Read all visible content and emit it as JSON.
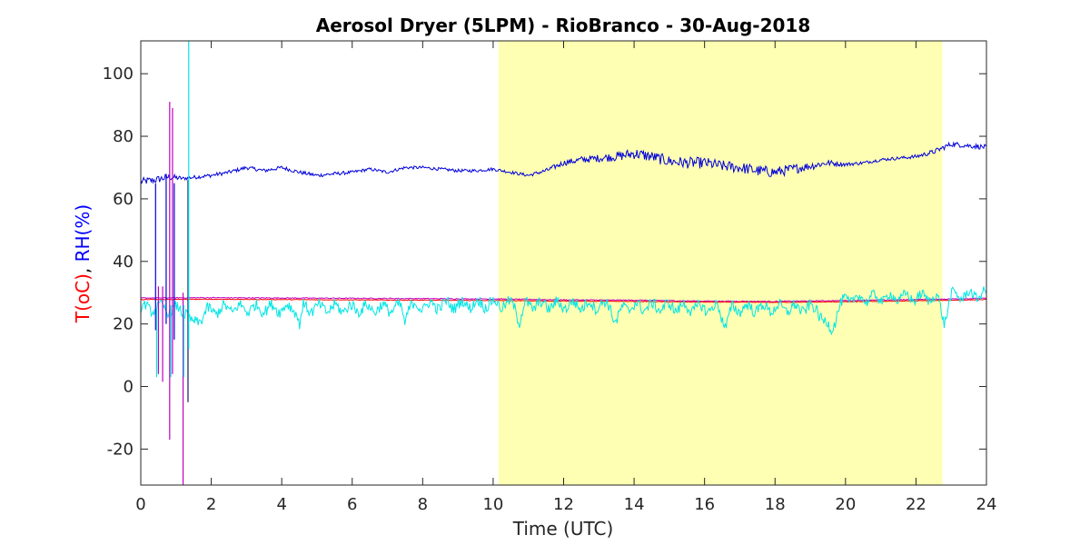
{
  "chart_data": {
    "type": "line",
    "title": "Aerosol Dryer (5LPM) - RioBranco - 30-Aug-2018",
    "xlabel": "Time (UTC)",
    "ylabel_parts": [
      {
        "text": "T(oC)",
        "color": "#ff0000"
      },
      {
        "text": ", ",
        "color": "#000000"
      },
      {
        "text": "RH(%)",
        "color": "#0000ff"
      }
    ],
    "xlim": [
      0,
      24
    ],
    "ylim": [
      -31.5,
      110.5
    ],
    "xticks": [
      0,
      2,
      4,
      6,
      8,
      10,
      12,
      14,
      16,
      18,
      20,
      22,
      24
    ],
    "yticks": [
      -20,
      0,
      20,
      40,
      60,
      80,
      100
    ],
    "grid": false,
    "highlight": {
      "x": [
        10.15,
        22.75
      ],
      "color": "#ffffb3"
    },
    "colors": {
      "rh": "#0000d9",
      "t_red": "#ff0000",
      "t_magenta": "#c000c0",
      "rh_cyan": "#00e5e5"
    },
    "series": [
      {
        "color": "#0000d9",
        "x": [
          0,
          0.4,
          0.8,
          1.2,
          1.6,
          2.0,
          2.5,
          3.0,
          3.5,
          4.0,
          4.5,
          5.0,
          5.5,
          6.0,
          6.5,
          7.0,
          7.5,
          8.0,
          8.5,
          9.0,
          9.5,
          10.0,
          10.5,
          11.0,
          11.5,
          12.0,
          12.5,
          13.0,
          13.5,
          14.0,
          14.5,
          15.0,
          15.5,
          16.0,
          16.5,
          17.0,
          17.5,
          18.0,
          18.5,
          19.0,
          19.5,
          20.0,
          20.5,
          21.0,
          21.5,
          22.0,
          22.5,
          23.0,
          23.5,
          24.0
        ],
        "values": [
          65.5,
          66,
          67,
          66.5,
          67,
          67.5,
          68.5,
          70,
          69,
          70,
          68.5,
          67.5,
          68,
          68.5,
          69.5,
          68.5,
          70,
          70,
          69.5,
          69,
          69,
          69.5,
          68.5,
          67.5,
          69,
          71.5,
          72.5,
          73,
          73.5,
          74.5,
          73.5,
          72,
          71.5,
          71.5,
          70.5,
          70,
          69,
          68.5,
          69.5,
          70.5,
          71.5,
          71,
          71.5,
          72.5,
          73,
          73.5,
          75,
          77.5,
          77,
          76.5
        ],
        "noise": [
          1.2,
          1.2,
          1.2,
          0.6,
          0.6,
          0.6,
          0.6,
          0.6,
          0.6,
          0.6,
          0.6,
          0.6,
          0.6,
          0.5,
          0.5,
          0.5,
          0.5,
          0.5,
          0.5,
          0.5,
          0.5,
          0.5,
          0.5,
          0.5,
          0.7,
          0.9,
          1.1,
          1.2,
          1.5,
          1.8,
          1.8,
          1.8,
          1.8,
          1.8,
          1.8,
          1.8,
          1.8,
          1.8,
          1.6,
          1.3,
          1.0,
          0.6,
          0.5,
          0.5,
          0.5,
          0.6,
          0.8,
          0.8,
          0.8,
          0.8
        ]
      },
      {
        "color": "#c000c0",
        "x": [
          0,
          2,
          4,
          6,
          8,
          10,
          12,
          14,
          16,
          18,
          20,
          22,
          24
        ],
        "values": [
          28.3,
          28.4,
          28.3,
          28.2,
          28.1,
          28.0,
          27.7,
          27.6,
          27.3,
          27.2,
          27.5,
          27.8,
          28.2
        ],
        "noise": [
          0.15,
          0.15,
          0.15,
          0.15,
          0.15,
          0.15,
          0.15,
          0.15,
          0.15,
          0.15,
          0.15,
          0.15,
          0.15
        ]
      },
      {
        "color": "#ff0000",
        "x": [
          0,
          2,
          4,
          6,
          8,
          10,
          12,
          14,
          16,
          18,
          20,
          22,
          24
        ],
        "values": [
          27.8,
          27.9,
          27.8,
          27.7,
          27.6,
          27.5,
          27.3,
          27.2,
          27.0,
          26.9,
          27.1,
          27.4,
          27.8
        ],
        "noise": [
          0.1,
          0.1,
          0.1,
          0.1,
          0.1,
          0.1,
          0.1,
          0.1,
          0.1,
          0.1,
          0.1,
          0.1,
          0.1
        ]
      },
      {
        "color": "#00e5e5",
        "x": [
          0,
          0.6,
          1.3,
          1.45,
          1.9,
          2.5,
          3.5,
          4.4,
          4.5,
          4.6,
          5.5,
          7.0,
          7.4,
          7.5,
          7.6,
          8.5,
          10.0,
          10.6,
          10.75,
          10.9,
          12.0,
          13.3,
          13.5,
          13.7,
          15.0,
          15.8,
          16.4,
          16.6,
          16.8,
          17.8,
          19.2,
          19.4,
          19.6,
          19.8,
          20.0,
          21.5,
          22.6,
          22.8,
          23.0,
          24.0
        ],
        "values": [
          25,
          25,
          24,
          19.5,
          24,
          25,
          25,
          25,
          19.5,
          25,
          25,
          25,
          25,
          21,
          25.5,
          26,
          26.5,
          26,
          21,
          26,
          26,
          26,
          20.5,
          25.5,
          25.5,
          25,
          25,
          19.5,
          25,
          25,
          25,
          20,
          18.5,
          24.5,
          28,
          28.5,
          28.5,
          21,
          29,
          29.5
        ],
        "noise": [
          1.6,
          1.6,
          1.6,
          1.6,
          1.8,
          1.8,
          1.8,
          1.8,
          1.8,
          1.8,
          1.8,
          1.8,
          1.8,
          1.8,
          1.8,
          1.8,
          1.8,
          1.8,
          1.8,
          1.8,
          1.8,
          1.8,
          1.8,
          1.8,
          1.8,
          1.8,
          1.8,
          1.8,
          1.8,
          1.8,
          1.8,
          1.8,
          1.8,
          1.8,
          1.6,
          1.6,
          1.6,
          1.6,
          1.6,
          1.6
        ]
      }
    ],
    "spikes": [
      {
        "x": 0.42,
        "y1": 18,
        "y2": 65,
        "color": "#0000d9"
      },
      {
        "x": 0.5,
        "y1": 4,
        "y2": 32,
        "color": "#c000c0"
      },
      {
        "x": 0.62,
        "y1": 1.5,
        "y2": 32,
        "color": "#c000c0"
      },
      {
        "x": 0.72,
        "y1": 20,
        "y2": 68,
        "color": "#0000d9"
      },
      {
        "x": 0.82,
        "y1": -17,
        "y2": 91,
        "color": "#c000c0"
      },
      {
        "x": 0.9,
        "y1": 4,
        "y2": 89,
        "color": "#c000c0"
      },
      {
        "x": 0.95,
        "y1": 15,
        "y2": 65,
        "color": "#0000d9"
      },
      {
        "x": 1.2,
        "y1": -31.5,
        "y2": 30,
        "color": "#c000c0"
      },
      {
        "x": 1.34,
        "y1": -5,
        "y2": 66,
        "color": "#1a1a66"
      },
      {
        "x": 0.45,
        "y1": 3,
        "y2": 25,
        "color": "#00e5e5"
      },
      {
        "x": 0.85,
        "y1": 3,
        "y2": 26,
        "color": "#00e5e5"
      },
      {
        "x": 1.22,
        "y1": 3,
        "y2": 26,
        "color": "#00e5e5"
      },
      {
        "x": 1.36,
        "y1": 12,
        "y2": 110.5,
        "color": "#00e5e5"
      }
    ]
  }
}
